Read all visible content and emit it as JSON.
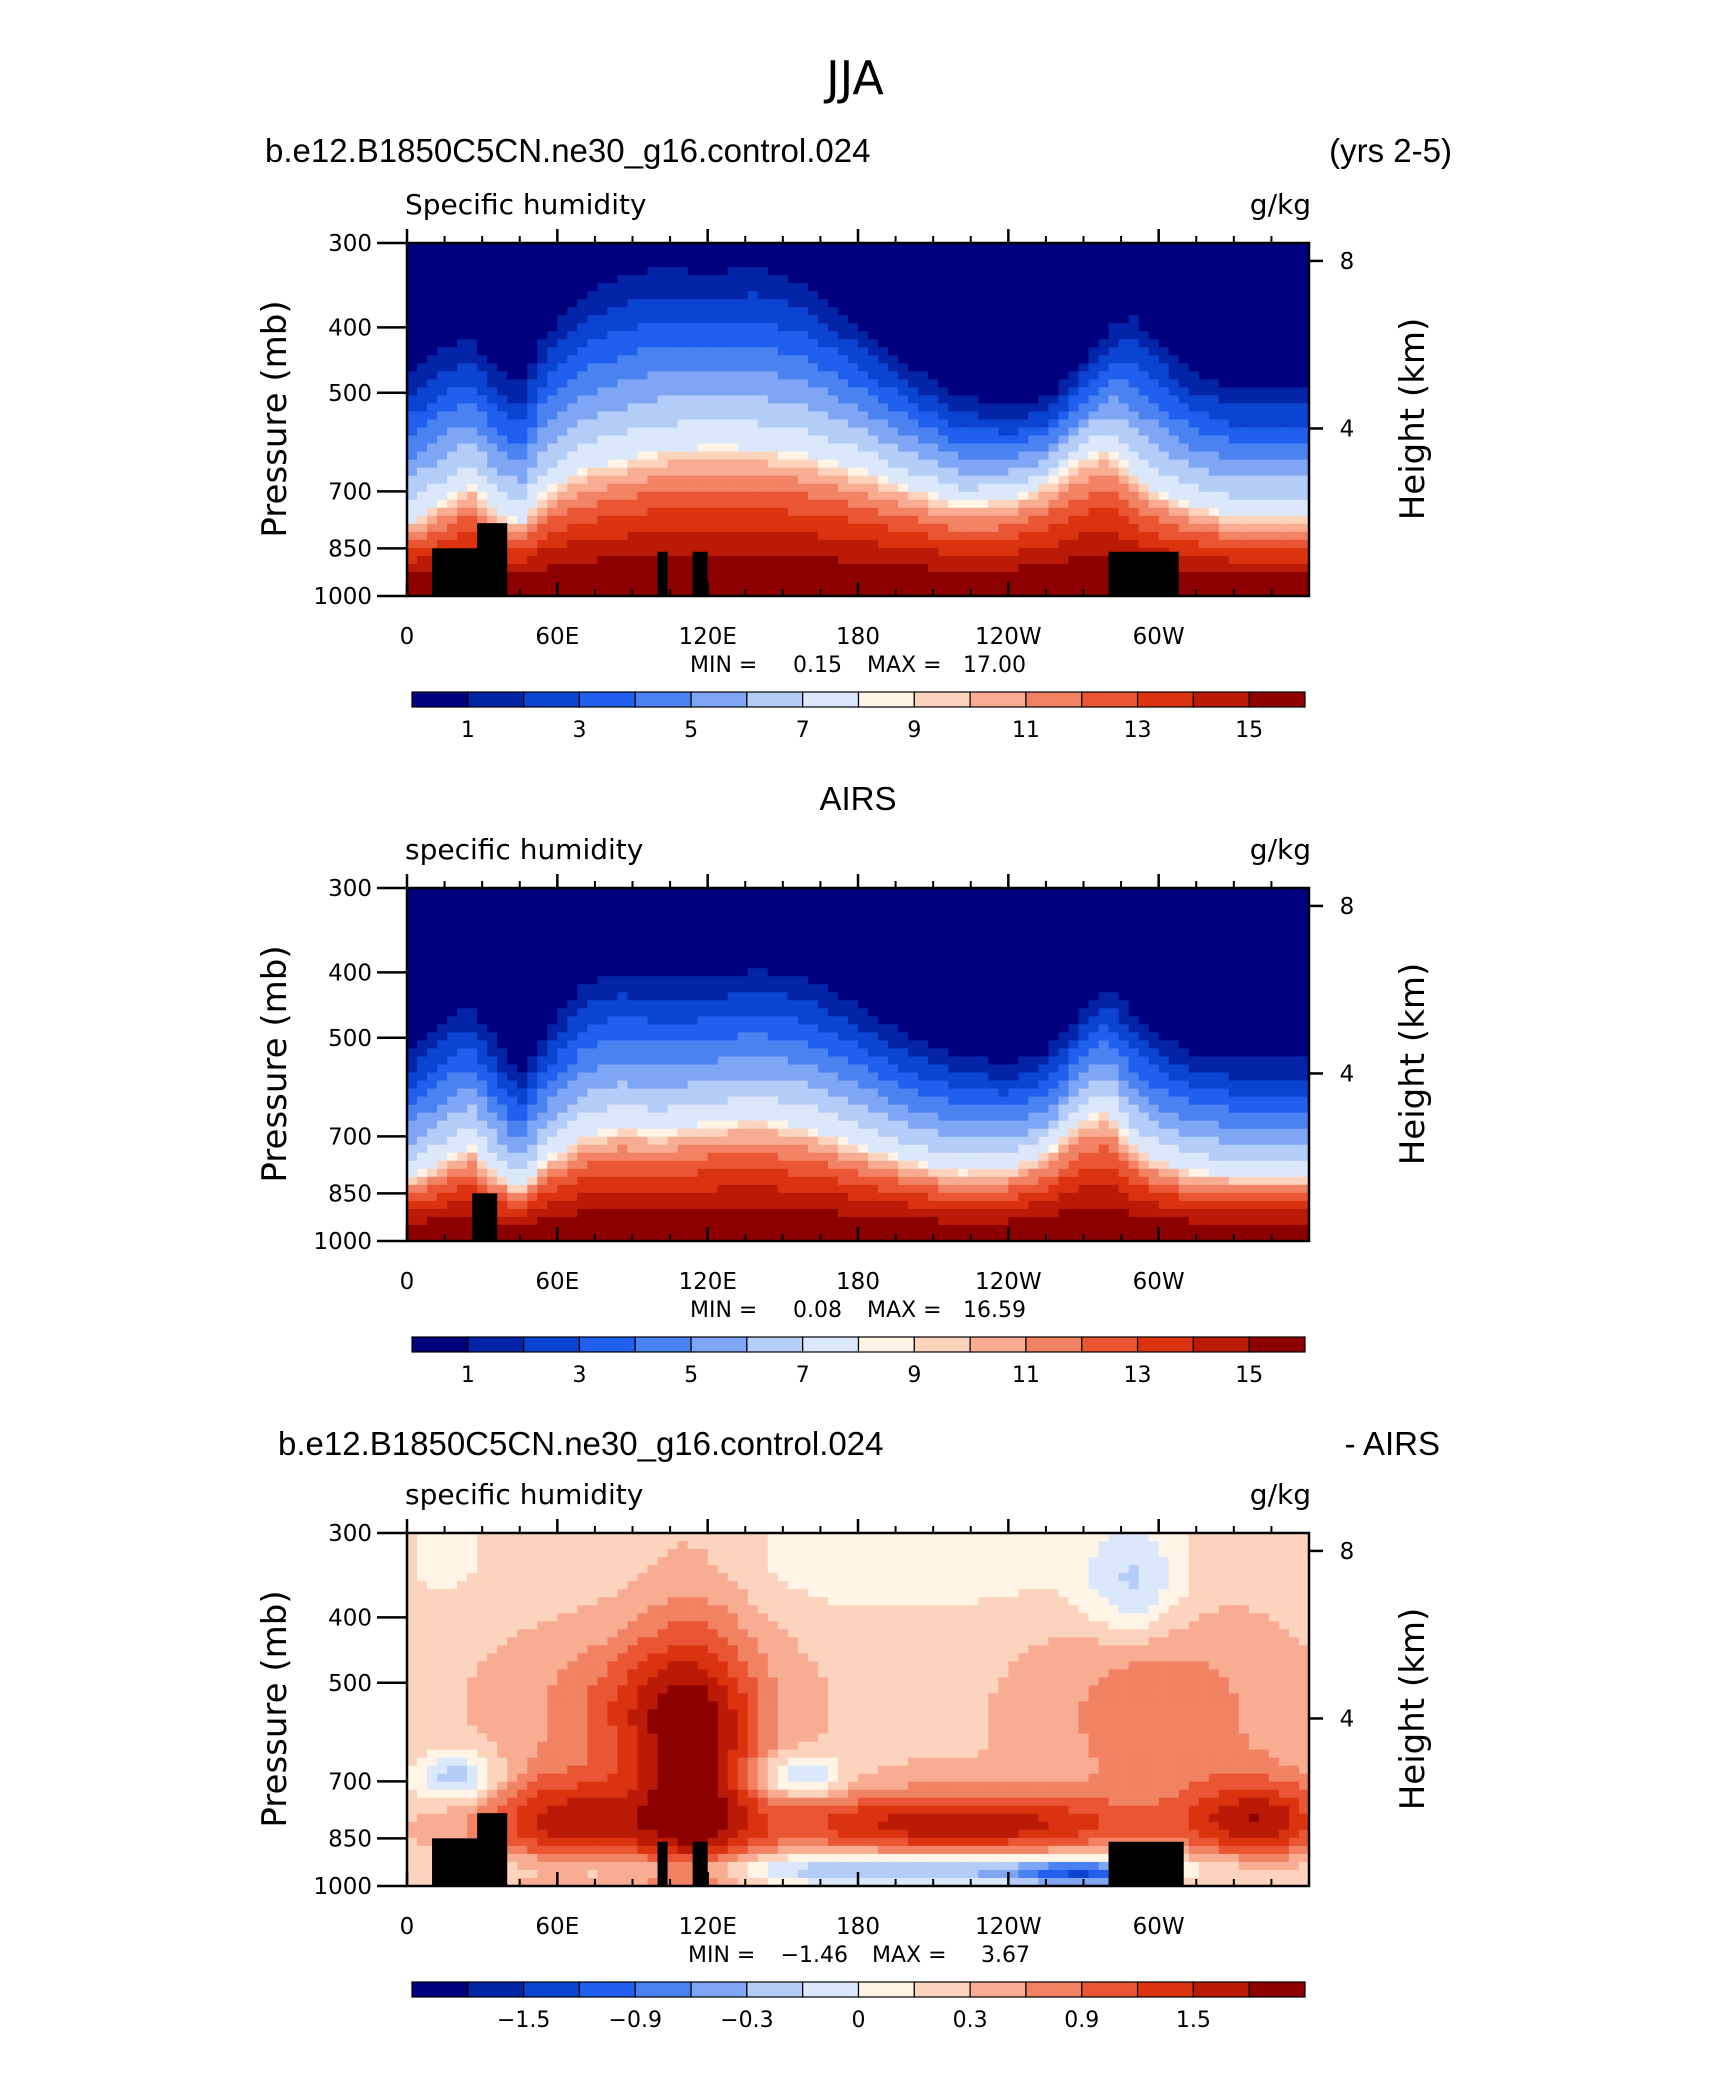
{
  "figure": {
    "title": "JJA",
    "top_left": "b.e12.B1850C5CN.ne30_g16.control.024",
    "top_right": "(yrs 2-5)",
    "mid_center": "AIRS",
    "bottom_left": "b.e12.B1850C5CN.ne30_g16.control.024",
    "bottom_right": "- AIRS"
  },
  "chart_data": [
    {
      "type": "heatmap",
      "name": "model",
      "left_label": "Specific humidity",
      "right_label": "g/kg",
      "ylabel": "Pressure (mb)",
      "y2label": "Height (km)",
      "xticks": [
        "0",
        "60E",
        "120E",
        "180",
        "120W",
        "60W"
      ],
      "xtick_values": [
        0,
        60,
        120,
        180,
        240,
        300
      ],
      "xlim": [
        0,
        360
      ],
      "yticks": [
        "300",
        "400",
        "500",
        "700",
        "850",
        "1000"
      ],
      "ytick_values": [
        300,
        400,
        500,
        700,
        850,
        1000
      ],
      "ylim": [
        300,
        1000
      ],
      "y_scale": "log",
      "y2ticks": [
        "8",
        "4"
      ],
      "y2tick_values": [
        8,
        4
      ],
      "stats": {
        "min_label": "MIN =",
        "min": "0.15",
        "max_label": "MAX =",
        "max": "17.00"
      },
      "colorbar": {
        "labels": [
          "1",
          "3",
          "5",
          "7",
          "9",
          "11",
          "13",
          "15"
        ],
        "colors": [
          "#00007f",
          "#0424a8",
          "#0b44d0",
          "#215fee",
          "#4a82f2",
          "#7ea6f5",
          "#b3ccf8",
          "#dbe8fb",
          "#fff4e5",
          "#fcd3bc",
          "#f8ad93",
          "#f28264",
          "#ea5634",
          "#db3210",
          "#ba1a06",
          "#8c0000"
        ]
      },
      "profile": {
        "lon": [
          0,
          15,
          25,
          35,
          45,
          55,
          70,
          85,
          100,
          120,
          140,
          160,
          180,
          200,
          220,
          240,
          255,
          270,
          280,
          290,
          300,
          315,
          330,
          345,
          360
        ],
        "p_top": [
          440,
          400,
          390,
          430,
          460,
          380,
          330,
          310,
          300,
          305,
          300,
          320,
          370,
          430,
          480,
          500,
          490,
          430,
          380,
          360,
          390,
          440,
          460,
          460,
          460
        ],
        "p_mid": [
          780,
          720,
          680,
          740,
          780,
          700,
          650,
          630,
          610,
          600,
          605,
          620,
          650,
          690,
          730,
          720,
          680,
          620,
          600,
          660,
          700,
          740,
          760,
          760,
          760
        ]
      },
      "land_blocks": [
        [
          10,
          850,
          35,
          1000
        ],
        [
          28,
          780,
          40,
          1000
        ],
        [
          100,
          860,
          104,
          1000
        ],
        [
          114,
          860,
          120,
          1000
        ],
        [
          280,
          860,
          308,
          1000
        ]
      ]
    },
    {
      "type": "heatmap",
      "name": "airs",
      "left_label": "specific humidity",
      "right_label": "g/kg",
      "ylabel": "Pressure (mb)",
      "y2label": "Height (km)",
      "xticks": [
        "0",
        "60E",
        "120E",
        "180",
        "120W",
        "60W"
      ],
      "xtick_values": [
        0,
        60,
        120,
        180,
        240,
        300
      ],
      "xlim": [
        0,
        360
      ],
      "yticks": [
        "300",
        "400",
        "500",
        "700",
        "850",
        "1000"
      ],
      "ytick_values": [
        300,
        400,
        500,
        700,
        850,
        1000
      ],
      "ylim": [
        300,
        1000
      ],
      "y_scale": "log",
      "y2ticks": [
        "8",
        "4"
      ],
      "y2tick_values": [
        8,
        4
      ],
      "stats": {
        "min_label": "MIN =",
        "min": "0.08",
        "max_label": "MAX =",
        "max": "16.59"
      },
      "colorbar": {
        "labels": [
          "1",
          "3",
          "5",
          "7",
          "9",
          "11",
          "13",
          "15"
        ],
        "colors": [
          "#00007f",
          "#0424a8",
          "#0b44d0",
          "#215fee",
          "#4a82f2",
          "#7ea6f5",
          "#b3ccf8",
          "#dbe8fb",
          "#fff4e5",
          "#fcd3bc",
          "#f8ad93",
          "#f28264",
          "#ea5634",
          "#db3210",
          "#ba1a06",
          "#8c0000"
        ]
      },
      "profile": {
        "lon": [
          0,
          15,
          25,
          35,
          45,
          55,
          70,
          85,
          100,
          120,
          140,
          160,
          180,
          200,
          220,
          240,
          255,
          270,
          280,
          290,
          300,
          315,
          330,
          345,
          360
        ],
        "p_top": [
          500,
          440,
          420,
          470,
          540,
          460,
          390,
          370,
          380,
          380,
          370,
          380,
          420,
          470,
          500,
          520,
          500,
          430,
          400,
          430,
          470,
          500,
          510,
          510,
          510
        ],
        "p_mid": [
          810,
          760,
          720,
          790,
          840,
          760,
          700,
          680,
          690,
          670,
          660,
          680,
          720,
          760,
          790,
          780,
          740,
          660,
          640,
          720,
          760,
          790,
          800,
          800,
          800
        ]
      },
      "land_blocks": [
        [
          26,
          850,
          36,
          1000
        ]
      ]
    },
    {
      "type": "heatmap",
      "name": "difference",
      "left_label": "specific humidity",
      "right_label": "g/kg",
      "ylabel": "Pressure (mb)",
      "y2label": "Height (km)",
      "xticks": [
        "0",
        "60E",
        "120E",
        "180",
        "120W",
        "60W"
      ],
      "xtick_values": [
        0,
        60,
        120,
        180,
        240,
        300
      ],
      "xlim": [
        0,
        360
      ],
      "yticks": [
        "300",
        "400",
        "500",
        "700",
        "850",
        "1000"
      ],
      "ytick_values": [
        300,
        400,
        500,
        700,
        850,
        1000
      ],
      "ylim": [
        300,
        1000
      ],
      "y_scale": "log",
      "y2ticks": [
        "8",
        "4"
      ],
      "y2tick_values": [
        8,
        4
      ],
      "stats": {
        "min_label": "MIN =",
        "min": "−1.46",
        "max_label": "MAX =",
        "max": "3.67"
      },
      "colorbar": {
        "labels": [
          "−1.5",
          "−0.9",
          "−0.3",
          "0",
          "0.3",
          "0.9",
          "1.5"
        ],
        "colors": [
          "#00007f",
          "#0424a8",
          "#0b44d0",
          "#215fee",
          "#4a82f2",
          "#7ea6f5",
          "#b3ccf8",
          "#dbe8fb",
          "#fff4e5",
          "#fcd3bc",
          "#f8ad93",
          "#f28264",
          "#ea5634",
          "#db3210",
          "#ba1a06",
          "#8c0000"
        ]
      },
      "land_blocks": [
        [
          10,
          850,
          35,
          1000
        ],
        [
          28,
          780,
          40,
          1000
        ],
        [
          100,
          860,
          104,
          1000
        ],
        [
          114,
          860,
          120,
          1000
        ],
        [
          280,
          860,
          310,
          1000
        ]
      ]
    }
  ]
}
